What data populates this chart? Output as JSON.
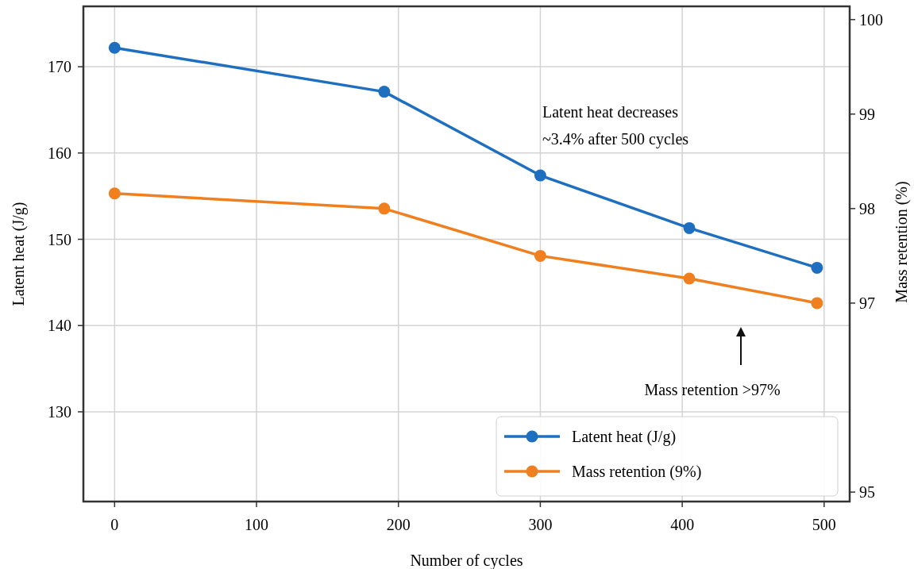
{
  "chart_data": {
    "type": "line",
    "xlabel": "Number of cycles",
    "ylabel": "Latent heat (J/g)",
    "y2label": "Mass retention (%)",
    "x": [
      0,
      190,
      300,
      405,
      495
    ],
    "series": [
      {
        "name": "Latent heat (J/g)",
        "color": "#1f6fc1",
        "values": [
          172.2,
          167.1,
          157.4,
          151.3,
          146.7
        ]
      },
      {
        "name": "Mass retention (9%)",
        "color": "#f07f1f",
        "axis": "y2",
        "values": [
          98.16,
          98.0,
          97.5,
          97.26,
          97.0
        ]
      }
    ],
    "xlim": [
      -22,
      518
    ],
    "xticks": [
      0,
      100,
      200,
      300,
      400,
      500
    ],
    "ylim": [
      119.6,
      177
    ],
    "yticks": [
      130,
      140,
      150,
      160,
      170
    ],
    "y2lim": [
      94.9,
      100.14
    ],
    "y2ticks": [
      95,
      97,
      98,
      99,
      100
    ],
    "annotations": [
      "Latent heat decreases",
      "~3.4% after 500 cycles",
      "Mass retention >97%"
    ],
    "grid": true,
    "legend": "bottom right",
    "marker": "circle",
    "line_style": "solid"
  }
}
